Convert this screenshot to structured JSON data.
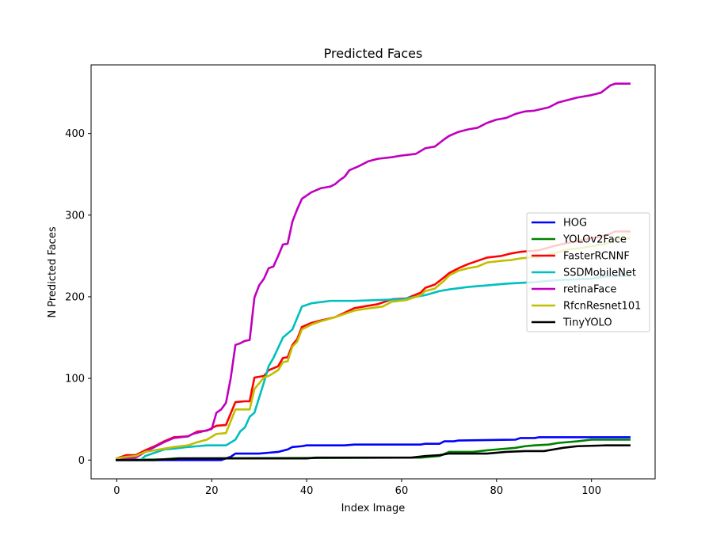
{
  "chart_data": {
    "type": "line",
    "title": "Predicted Faces",
    "xlabel": "Index Image",
    "ylabel": "N Predicted Faces",
    "xlim": [
      -5.4,
      113.4
    ],
    "ylim": [
      -23,
      484
    ],
    "xticks": [
      0,
      20,
      40,
      60,
      80,
      100
    ],
    "yticks": [
      0,
      100,
      200,
      300,
      400
    ],
    "grid": false,
    "legend": "center-right",
    "series": [
      {
        "name": "HOG",
        "color": "#0000ff",
        "points": [
          [
            0,
            0
          ],
          [
            22,
            0
          ],
          [
            24,
            4
          ],
          [
            25,
            8
          ],
          [
            30,
            8
          ],
          [
            32,
            9
          ],
          [
            34,
            10
          ],
          [
            36,
            13
          ],
          [
            37,
            16
          ],
          [
            39,
            17
          ],
          [
            40,
            18
          ],
          [
            48,
            18
          ],
          [
            50,
            19
          ],
          [
            64,
            19
          ],
          [
            65,
            20
          ],
          [
            68,
            20
          ],
          [
            69,
            23
          ],
          [
            71,
            23
          ],
          [
            72,
            24
          ],
          [
            84,
            25
          ],
          [
            85,
            27
          ],
          [
            88,
            27
          ],
          [
            89,
            28
          ],
          [
            108,
            28
          ]
        ]
      },
      {
        "name": "YOLOv2Face",
        "color": "#008000",
        "points": [
          [
            0,
            0
          ],
          [
            10,
            1
          ],
          [
            12,
            2
          ],
          [
            64,
            3
          ],
          [
            68,
            5
          ],
          [
            70,
            10
          ],
          [
            75,
            10
          ],
          [
            78,
            12
          ],
          [
            80,
            13
          ],
          [
            84,
            15
          ],
          [
            86,
            17
          ],
          [
            88,
            18
          ],
          [
            91,
            19
          ],
          [
            93,
            21
          ],
          [
            97,
            23
          ],
          [
            100,
            25
          ],
          [
            108,
            25
          ]
        ]
      },
      {
        "name": "FasterRCNNF",
        "color": "#ff0000",
        "points": [
          [
            0,
            2
          ],
          [
            2,
            6
          ],
          [
            4,
            6
          ],
          [
            6,
            12
          ],
          [
            8,
            17
          ],
          [
            10,
            23
          ],
          [
            12,
            28
          ],
          [
            15,
            29
          ],
          [
            17,
            35
          ],
          [
            19,
            36
          ],
          [
            21,
            42
          ],
          [
            23,
            43
          ],
          [
            25,
            71
          ],
          [
            27,
            72
          ],
          [
            28,
            72
          ],
          [
            29,
            101
          ],
          [
            31,
            103
          ],
          [
            32,
            110
          ],
          [
            34,
            115
          ],
          [
            35,
            125
          ],
          [
            36,
            126
          ],
          [
            37,
            141
          ],
          [
            38,
            148
          ],
          [
            39,
            163
          ],
          [
            41,
            168
          ],
          [
            43,
            171
          ],
          [
            46,
            175
          ],
          [
            50,
            186
          ],
          [
            52,
            188
          ],
          [
            55,
            191
          ],
          [
            58,
            197
          ],
          [
            61,
            198
          ],
          [
            64,
            205
          ],
          [
            65,
            211
          ],
          [
            67,
            215
          ],
          [
            69,
            224
          ],
          [
            70,
            229
          ],
          [
            72,
            235
          ],
          [
            74,
            240
          ],
          [
            76,
            244
          ],
          [
            78,
            248
          ],
          [
            81,
            250
          ],
          [
            83,
            253
          ],
          [
            85,
            255
          ],
          [
            89,
            257
          ],
          [
            92,
            262
          ],
          [
            95,
            266
          ],
          [
            97,
            268
          ],
          [
            100,
            272
          ],
          [
            103,
            275
          ],
          [
            105,
            280
          ],
          [
            108,
            280
          ]
        ]
      },
      {
        "name": "SSDMobileNet",
        "color": "#00bfbf",
        "points": [
          [
            0,
            0
          ],
          [
            5,
            0
          ],
          [
            6,
            5
          ],
          [
            8,
            9
          ],
          [
            10,
            13
          ],
          [
            12,
            14
          ],
          [
            15,
            16
          ],
          [
            17,
            17
          ],
          [
            19,
            18
          ],
          [
            23,
            18
          ],
          [
            25,
            25
          ],
          [
            26,
            35
          ],
          [
            27,
            40
          ],
          [
            28,
            53
          ],
          [
            29,
            58
          ],
          [
            31,
            95
          ],
          [
            32,
            115
          ],
          [
            33,
            125
          ],
          [
            35,
            150
          ],
          [
            37,
            160
          ],
          [
            39,
            188
          ],
          [
            41,
            192
          ],
          [
            45,
            195
          ],
          [
            50,
            195
          ],
          [
            60,
            197
          ],
          [
            65,
            202
          ],
          [
            68,
            207
          ],
          [
            70,
            209
          ],
          [
            74,
            212
          ],
          [
            78,
            214
          ],
          [
            82,
            216
          ],
          [
            85,
            217
          ],
          [
            88,
            218
          ],
          [
            92,
            220
          ],
          [
            95,
            221
          ],
          [
            100,
            222
          ],
          [
            103,
            225
          ],
          [
            108,
            226
          ]
        ]
      },
      {
        "name": "retinaFace",
        "color": "#bf00bf",
        "points": [
          [
            0,
            0
          ],
          [
            4,
            3
          ],
          [
            6,
            10
          ],
          [
            8,
            16
          ],
          [
            10,
            22
          ],
          [
            12,
            27
          ],
          [
            15,
            29
          ],
          [
            16,
            32
          ],
          [
            18,
            35
          ],
          [
            20,
            38
          ],
          [
            21,
            58
          ],
          [
            22,
            62
          ],
          [
            23,
            70
          ],
          [
            24,
            100
          ],
          [
            25,
            141
          ],
          [
            26,
            143
          ],
          [
            27,
            146
          ],
          [
            28,
            147
          ],
          [
            29,
            199
          ],
          [
            30,
            214
          ],
          [
            31,
            222
          ],
          [
            32,
            235
          ],
          [
            33,
            237
          ],
          [
            34,
            250
          ],
          [
            35,
            264
          ],
          [
            36,
            265
          ],
          [
            37,
            292
          ],
          [
            38,
            307
          ],
          [
            39,
            320
          ],
          [
            41,
            328
          ],
          [
            43,
            333
          ],
          [
            44,
            334
          ],
          [
            45,
            335
          ],
          [
            46,
            338
          ],
          [
            47,
            343
          ],
          [
            48,
            347
          ],
          [
            49,
            355
          ],
          [
            51,
            360
          ],
          [
            53,
            366
          ],
          [
            55,
            369
          ],
          [
            58,
            371
          ],
          [
            60,
            373
          ],
          [
            63,
            375
          ],
          [
            65,
            382
          ],
          [
            67,
            384
          ],
          [
            69,
            393
          ],
          [
            70,
            397
          ],
          [
            72,
            402
          ],
          [
            74,
            405
          ],
          [
            76,
            407
          ],
          [
            78,
            413
          ],
          [
            80,
            417
          ],
          [
            82,
            419
          ],
          [
            84,
            424
          ],
          [
            86,
            427
          ],
          [
            88,
            428
          ],
          [
            91,
            432
          ],
          [
            93,
            438
          ],
          [
            95,
            441
          ],
          [
            97,
            444
          ],
          [
            100,
            447
          ],
          [
            102,
            450
          ],
          [
            104,
            459
          ],
          [
            105,
            461
          ],
          [
            108,
            461
          ]
        ]
      },
      {
        "name": "RfcnResnet101",
        "color": "#bfbf00",
        "points": [
          [
            0,
            2
          ],
          [
            2,
            4
          ],
          [
            4,
            5
          ],
          [
            6,
            10
          ],
          [
            8,
            12
          ],
          [
            10,
            14
          ],
          [
            12,
            16
          ],
          [
            15,
            18
          ],
          [
            17,
            22
          ],
          [
            19,
            25
          ],
          [
            21,
            32
          ],
          [
            23,
            33
          ],
          [
            25,
            62
          ],
          [
            28,
            62
          ],
          [
            29,
            87
          ],
          [
            31,
            101
          ],
          [
            32,
            103
          ],
          [
            34,
            110
          ],
          [
            35,
            120
          ],
          [
            36,
            121
          ],
          [
            37,
            139
          ],
          [
            38,
            145
          ],
          [
            39,
            160
          ],
          [
            41,
            166
          ],
          [
            43,
            170
          ],
          [
            46,
            175
          ],
          [
            50,
            183
          ],
          [
            52,
            185
          ],
          [
            56,
            188
          ],
          [
            58,
            194
          ],
          [
            61,
            196
          ],
          [
            64,
            202
          ],
          [
            65,
            207
          ],
          [
            67,
            210
          ],
          [
            69,
            220
          ],
          [
            70,
            226
          ],
          [
            72,
            232
          ],
          [
            74,
            235
          ],
          [
            76,
            237
          ],
          [
            78,
            242
          ],
          [
            81,
            244
          ],
          [
            83,
            245
          ],
          [
            85,
            247
          ],
          [
            89,
            249
          ],
          [
            92,
            253
          ],
          [
            95,
            258
          ],
          [
            97,
            259
          ],
          [
            100,
            262
          ],
          [
            103,
            265
          ],
          [
            105,
            270
          ],
          [
            108,
            272
          ]
        ]
      },
      {
        "name": "TinyYOLO",
        "color": "#000000",
        "points": [
          [
            0,
            0
          ],
          [
            8,
            0
          ],
          [
            10,
            1
          ],
          [
            12,
            1
          ],
          [
            13,
            2
          ],
          [
            40,
            2
          ],
          [
            42,
            3
          ],
          [
            62,
            3
          ],
          [
            65,
            5
          ],
          [
            68,
            6
          ],
          [
            70,
            8
          ],
          [
            78,
            8
          ],
          [
            82,
            10
          ],
          [
            86,
            11
          ],
          [
            90,
            11
          ],
          [
            92,
            13
          ],
          [
            94,
            15
          ],
          [
            97,
            17
          ],
          [
            103,
            18
          ],
          [
            108,
            18
          ]
        ]
      }
    ]
  }
}
